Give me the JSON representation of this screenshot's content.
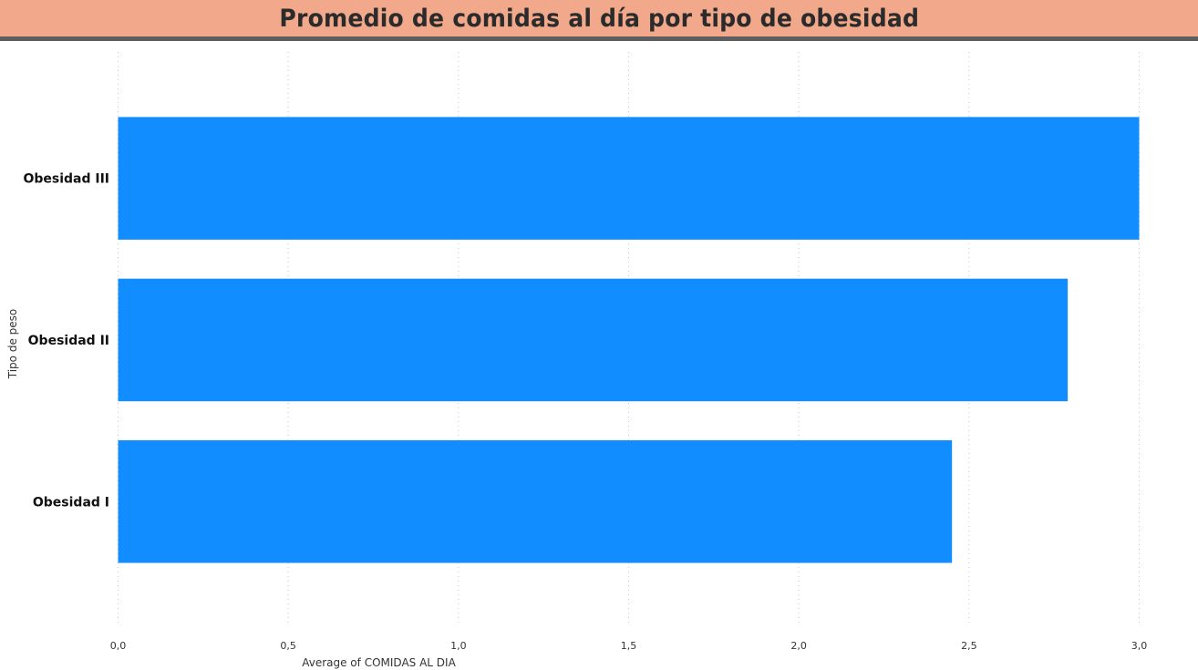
{
  "header": {
    "title": "Promedio de comidas al día por tipo de obesidad"
  },
  "colors": {
    "bar": "#118DFF",
    "header_bg": "#F2A88A",
    "header_border": "#5E5E5E",
    "grid": "#C8C8C8"
  },
  "chart_data": {
    "type": "bar",
    "orientation": "horizontal",
    "title": "Promedio de comidas al día por tipo de obesidad",
    "xlabel": "Average of COMIDAS AL DIA",
    "ylabel": "Tipo de peso",
    "categories": [
      "Obesidad III",
      "Obesidad II",
      "Obesidad I"
    ],
    "values": [
      3.0,
      2.79,
      2.45
    ],
    "xlim": [
      0,
      3
    ],
    "xticks": [
      0,
      0.5,
      1,
      1.5,
      2,
      2.5,
      3
    ],
    "xtick_labels": [
      "0,0",
      "0,5",
      "1,0",
      "1,5",
      "2,0",
      "2,5",
      "3,0"
    ],
    "grid": "vertical dotted",
    "legend": "none"
  }
}
